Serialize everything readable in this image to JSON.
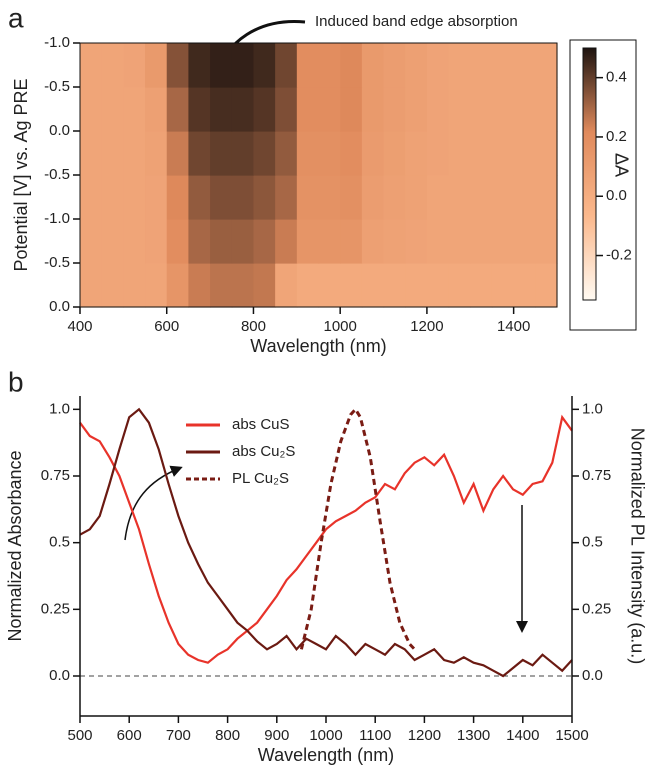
{
  "chart_data": [
    {
      "type": "heatmap",
      "panel": "a",
      "annotation": "Induced band edge absorption",
      "xlabel": "Wavelength (nm)",
      "ylabel": "Potential [V] vs. Ag PRE",
      "xlim": [
        400,
        1500
      ],
      "xticks": [
        400,
        600,
        800,
        1000,
        1200,
        1400
      ],
      "ylim": [
        0,
        6
      ],
      "yticks": [
        {
          "value": 0,
          "label": "0.0"
        },
        {
          "value": 1,
          "label": "-0.5"
        },
        {
          "value": 2,
          "label": "-1.0"
        },
        {
          "value": 3,
          "label": "-0.5"
        },
        {
          "value": 4,
          "label": "0.0"
        },
        {
          "value": 5,
          "label": "-0.5"
        },
        {
          "value": 6,
          "label": "-1.0"
        }
      ],
      "xbins": [
        400,
        450,
        500,
        550,
        600,
        650,
        700,
        750,
        800,
        850,
        900,
        950,
        1000,
        1050,
        1100,
        1150,
        1200,
        1250,
        1300,
        1350,
        1400,
        1450,
        1500
      ],
      "ybins": [
        0,
        1,
        2,
        3,
        4,
        5,
        6
      ],
      "z": [
        [
          0.05,
          0.05,
          0.05,
          0.05,
          0.15,
          0.25,
          0.27,
          0.27,
          0.26,
          0.05,
          0.02,
          0.02,
          0.02,
          0.02,
          0.02,
          0.02,
          0.02,
          0.02,
          0.02,
          0.02,
          0.02,
          0.02
        ],
        [
          0.05,
          0.05,
          0.05,
          0.06,
          0.2,
          0.3,
          0.32,
          0.32,
          0.3,
          0.25,
          0.15,
          0.15,
          0.15,
          0.08,
          0.07,
          0.06,
          0.05,
          0.05,
          0.05,
          0.05,
          0.05,
          0.05
        ],
        [
          0.05,
          0.05,
          0.05,
          0.06,
          0.22,
          0.33,
          0.36,
          0.36,
          0.34,
          0.3,
          0.17,
          0.17,
          0.18,
          0.1,
          0.08,
          0.07,
          0.05,
          0.05,
          0.05,
          0.05,
          0.05,
          0.05
        ],
        [
          0.05,
          0.05,
          0.05,
          0.07,
          0.25,
          0.38,
          0.4,
          0.4,
          0.38,
          0.33,
          0.18,
          0.18,
          0.2,
          0.11,
          0.09,
          0.07,
          0.06,
          0.05,
          0.05,
          0.05,
          0.05,
          0.05
        ],
        [
          0.05,
          0.05,
          0.05,
          0.08,
          0.3,
          0.42,
          0.44,
          0.44,
          0.42,
          0.36,
          0.2,
          0.2,
          0.22,
          0.12,
          0.1,
          0.08,
          0.06,
          0.05,
          0.05,
          0.05,
          0.05,
          0.05
        ],
        [
          0.05,
          0.05,
          0.06,
          0.12,
          0.35,
          0.45,
          0.47,
          0.47,
          0.45,
          0.38,
          0.2,
          0.2,
          0.22,
          0.12,
          0.1,
          0.08,
          0.06,
          0.05,
          0.05,
          0.05,
          0.05,
          0.05
        ]
      ],
      "colorbar": {
        "label": "ΔA",
        "lim": [
          -0.35,
          0.5
        ],
        "ticks": [
          -0.2,
          {
            "value": 0,
            "label": "0.0"
          },
          0.2,
          0.4
        ],
        "colors": [
          "#fffaf2",
          "#fbb88c",
          "#e08a5c",
          "#1e1410"
        ]
      }
    },
    {
      "type": "line",
      "panel": "b",
      "xlabel": "Wavelength (nm)",
      "ylabel": "Normalized Absorbance",
      "y2label": "Normalized PL Intensity (a.u.)",
      "xlim": [
        500,
        1500
      ],
      "xticks": [
        500,
        600,
        700,
        800,
        900,
        1000,
        1100,
        1200,
        1300,
        1400,
        1500
      ],
      "ylim": [
        -0.15,
        1.05
      ],
      "yticks": [
        {
          "value": 0,
          "label": "0.0"
        },
        0.25,
        0.5,
        0.75,
        {
          "value": 1,
          "label": "1.0"
        }
      ],
      "y2lim": [
        -0.15,
        1.05
      ],
      "y2ticks": [
        {
          "value": 0,
          "label": "0.0"
        },
        0.25,
        0.5,
        0.75,
        {
          "value": 1,
          "label": "1.0"
        }
      ],
      "series": [
        {
          "name": "abs CuS",
          "color": "#e8332a",
          "style": "solid",
          "x": [
            500,
            520,
            540,
            560,
            580,
            600,
            620,
            640,
            660,
            680,
            700,
            720,
            740,
            760,
            780,
            800,
            820,
            840,
            860,
            880,
            900,
            920,
            940,
            960,
            980,
            1000,
            1020,
            1040,
            1060,
            1080,
            1100,
            1120,
            1140,
            1160,
            1180,
            1200,
            1220,
            1240,
            1260,
            1280,
            1300,
            1320,
            1340,
            1360,
            1380,
            1400,
            1420,
            1440,
            1460,
            1480,
            1500
          ],
          "values": [
            0.95,
            0.9,
            0.88,
            0.82,
            0.75,
            0.65,
            0.55,
            0.42,
            0.3,
            0.2,
            0.12,
            0.08,
            0.06,
            0.05,
            0.08,
            0.1,
            0.14,
            0.17,
            0.2,
            0.25,
            0.3,
            0.36,
            0.4,
            0.45,
            0.5,
            0.55,
            0.58,
            0.6,
            0.62,
            0.65,
            0.67,
            0.72,
            0.7,
            0.76,
            0.8,
            0.82,
            0.79,
            0.83,
            0.75,
            0.65,
            0.72,
            0.62,
            0.7,
            0.75,
            0.7,
            0.68,
            0.72,
            0.73,
            0.8,
            0.97,
            0.92
          ]
        },
        {
          "name": "abs Cu₂S",
          "color": "#6b1a12",
          "style": "solid",
          "x": [
            500,
            520,
            540,
            560,
            580,
            600,
            620,
            640,
            660,
            680,
            700,
            720,
            740,
            760,
            780,
            800,
            820,
            840,
            860,
            880,
            900,
            920,
            940,
            960,
            980,
            1000,
            1020,
            1040,
            1060,
            1080,
            1100,
            1120,
            1140,
            1160,
            1180,
            1200,
            1220,
            1240,
            1260,
            1280,
            1300,
            1320,
            1340,
            1360,
            1380,
            1400,
            1420,
            1440,
            1460,
            1480,
            1500
          ],
          "values": [
            0.53,
            0.55,
            0.6,
            0.72,
            0.85,
            0.97,
            1.0,
            0.95,
            0.85,
            0.72,
            0.6,
            0.5,
            0.42,
            0.35,
            0.3,
            0.25,
            0.2,
            0.17,
            0.13,
            0.1,
            0.12,
            0.15,
            0.1,
            0.14,
            0.12,
            0.1,
            0.15,
            0.12,
            0.08,
            0.12,
            0.1,
            0.08,
            0.12,
            0.1,
            0.06,
            0.08,
            0.1,
            0.06,
            0.05,
            0.07,
            0.05,
            0.04,
            0.02,
            0.0,
            0.03,
            0.06,
            0.04,
            0.08,
            0.05,
            0.02,
            0.06
          ]
        },
        {
          "name": "PL Cu₂S",
          "color": "#7a1c14",
          "style": "dashed",
          "axis": "y2",
          "x": [
            950,
            970,
            990,
            1010,
            1030,
            1050,
            1060,
            1070,
            1090,
            1110,
            1130,
            1150,
            1170,
            1180
          ],
          "values": [
            0.1,
            0.25,
            0.5,
            0.72,
            0.88,
            0.98,
            1.0,
            0.97,
            0.82,
            0.58,
            0.35,
            0.2,
            0.12,
            0.1
          ]
        }
      ]
    }
  ]
}
